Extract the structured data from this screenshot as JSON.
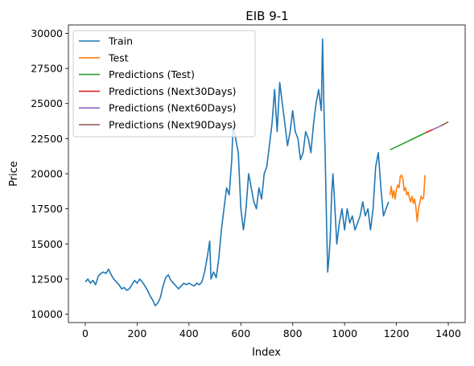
{
  "chart_data": {
    "type": "line",
    "title": "EIB 9-1",
    "xlabel": "Index",
    "ylabel": "Price",
    "xlim": [
      -65,
      1465
    ],
    "ylim": [
      9400,
      30600
    ],
    "xticks": [
      0,
      200,
      400,
      600,
      800,
      1000,
      1200,
      1400
    ],
    "yticks": [
      10000,
      12500,
      15000,
      17500,
      20000,
      22500,
      25000,
      27500,
      30000
    ],
    "legend_position": "upper-left",
    "grid": false,
    "series": [
      {
        "name": "Train",
        "color": "#1f77b4",
        "points": [
          [
            0,
            12300
          ],
          [
            10,
            12500
          ],
          [
            20,
            12200
          ],
          [
            30,
            12400
          ],
          [
            40,
            12100
          ],
          [
            50,
            12700
          ],
          [
            60,
            12900
          ],
          [
            70,
            13000
          ],
          [
            80,
            12900
          ],
          [
            90,
            13200
          ],
          [
            100,
            12800
          ],
          [
            110,
            12500
          ],
          [
            120,
            12300
          ],
          [
            130,
            12100
          ],
          [
            140,
            11800
          ],
          [
            150,
            11900
          ],
          [
            160,
            11700
          ],
          [
            170,
            11800
          ],
          [
            180,
            12100
          ],
          [
            190,
            12400
          ],
          [
            200,
            12200
          ],
          [
            210,
            12500
          ],
          [
            220,
            12300
          ],
          [
            230,
            12000
          ],
          [
            240,
            11700
          ],
          [
            250,
            11300
          ],
          [
            260,
            11000
          ],
          [
            270,
            10600
          ],
          [
            280,
            10800
          ],
          [
            290,
            11200
          ],
          [
            300,
            12000
          ],
          [
            310,
            12600
          ],
          [
            320,
            12800
          ],
          [
            330,
            12400
          ],
          [
            340,
            12200
          ],
          [
            350,
            12000
          ],
          [
            360,
            11800
          ],
          [
            370,
            12000
          ],
          [
            380,
            12200
          ],
          [
            390,
            12100
          ],
          [
            400,
            12200
          ],
          [
            410,
            12100
          ],
          [
            420,
            12000
          ],
          [
            430,
            12200
          ],
          [
            440,
            12100
          ],
          [
            450,
            12300
          ],
          [
            460,
            13000
          ],
          [
            470,
            14000
          ],
          [
            480,
            15200
          ],
          [
            485,
            12500
          ],
          [
            495,
            13000
          ],
          [
            505,
            12600
          ],
          [
            515,
            14000
          ],
          [
            525,
            16000
          ],
          [
            535,
            17500
          ],
          [
            545,
            19000
          ],
          [
            555,
            18500
          ],
          [
            565,
            21000
          ],
          [
            570,
            23500
          ],
          [
            580,
            22500
          ],
          [
            590,
            21500
          ],
          [
            600,
            17500
          ],
          [
            610,
            16000
          ],
          [
            620,
            17500
          ],
          [
            630,
            20000
          ],
          [
            640,
            19000
          ],
          [
            650,
            18000
          ],
          [
            660,
            17500
          ],
          [
            670,
            19000
          ],
          [
            680,
            18200
          ],
          [
            690,
            20000
          ],
          [
            700,
            20500
          ],
          [
            710,
            22000
          ],
          [
            720,
            23500
          ],
          [
            730,
            26000
          ],
          [
            740,
            23000
          ],
          [
            750,
            26500
          ],
          [
            760,
            25000
          ],
          [
            770,
            23500
          ],
          [
            780,
            22000
          ],
          [
            790,
            23000
          ],
          [
            800,
            24500
          ],
          [
            810,
            23000
          ],
          [
            820,
            22500
          ],
          [
            830,
            21000
          ],
          [
            840,
            21500
          ],
          [
            850,
            23000
          ],
          [
            860,
            22500
          ],
          [
            870,
            21500
          ],
          [
            880,
            23500
          ],
          [
            890,
            25000
          ],
          [
            900,
            26000
          ],
          [
            910,
            24500
          ],
          [
            915,
            29600
          ],
          [
            920,
            25000
          ],
          [
            925,
            21500
          ],
          [
            930,
            17000
          ],
          [
            935,
            13000
          ],
          [
            940,
            14000
          ],
          [
            945,
            15500
          ],
          [
            950,
            18500
          ],
          [
            955,
            20000
          ],
          [
            960,
            18500
          ],
          [
            970,
            15000
          ],
          [
            980,
            16500
          ],
          [
            990,
            17500
          ],
          [
            1000,
            16000
          ],
          [
            1010,
            17500
          ],
          [
            1020,
            16500
          ],
          [
            1030,
            17000
          ],
          [
            1040,
            16000
          ],
          [
            1050,
            16500
          ],
          [
            1060,
            17000
          ],
          [
            1070,
            18000
          ],
          [
            1080,
            17000
          ],
          [
            1090,
            17500
          ],
          [
            1100,
            16000
          ],
          [
            1110,
            17500
          ],
          [
            1120,
            20500
          ],
          [
            1130,
            21500
          ],
          [
            1140,
            19000
          ],
          [
            1150,
            17000
          ],
          [
            1160,
            17500
          ],
          [
            1170,
            18000
          ]
        ]
      },
      {
        "name": "Test",
        "color": "#ff7f0e",
        "points": [
          [
            1175,
            18500
          ],
          [
            1180,
            19100
          ],
          [
            1185,
            18300
          ],
          [
            1190,
            18800
          ],
          [
            1195,
            18200
          ],
          [
            1200,
            18900
          ],
          [
            1205,
            19200
          ],
          [
            1210,
            19000
          ],
          [
            1215,
            19800
          ],
          [
            1220,
            19900
          ],
          [
            1225,
            19600
          ],
          [
            1230,
            18800
          ],
          [
            1235,
            19000
          ],
          [
            1240,
            18500
          ],
          [
            1245,
            18700
          ],
          [
            1250,
            18300
          ],
          [
            1255,
            18000
          ],
          [
            1260,
            18400
          ],
          [
            1265,
            17900
          ],
          [
            1270,
            18200
          ],
          [
            1275,
            17600
          ],
          [
            1280,
            16600
          ],
          [
            1285,
            17500
          ],
          [
            1290,
            17900
          ],
          [
            1295,
            18400
          ],
          [
            1300,
            18200
          ],
          [
            1305,
            18300
          ],
          [
            1310,
            19900
          ]
        ]
      },
      {
        "name": "Predictions (Test)",
        "color": "#2ca02c",
        "points": [
          [
            1175,
            21700
          ],
          [
            1310,
            22900
          ]
        ]
      },
      {
        "name": "Predictions (Next30Days)",
        "color": "#d62728",
        "points": [
          [
            1310,
            22900
          ],
          [
            1340,
            23150
          ]
        ]
      },
      {
        "name": "Predictions (Next60Days)",
        "color": "#9467bd",
        "points": [
          [
            1340,
            23150
          ],
          [
            1370,
            23400
          ]
        ]
      },
      {
        "name": "Predictions (Next90Days)",
        "color": "#8c564b",
        "points": [
          [
            1370,
            23400
          ],
          [
            1400,
            23700
          ]
        ]
      }
    ]
  }
}
